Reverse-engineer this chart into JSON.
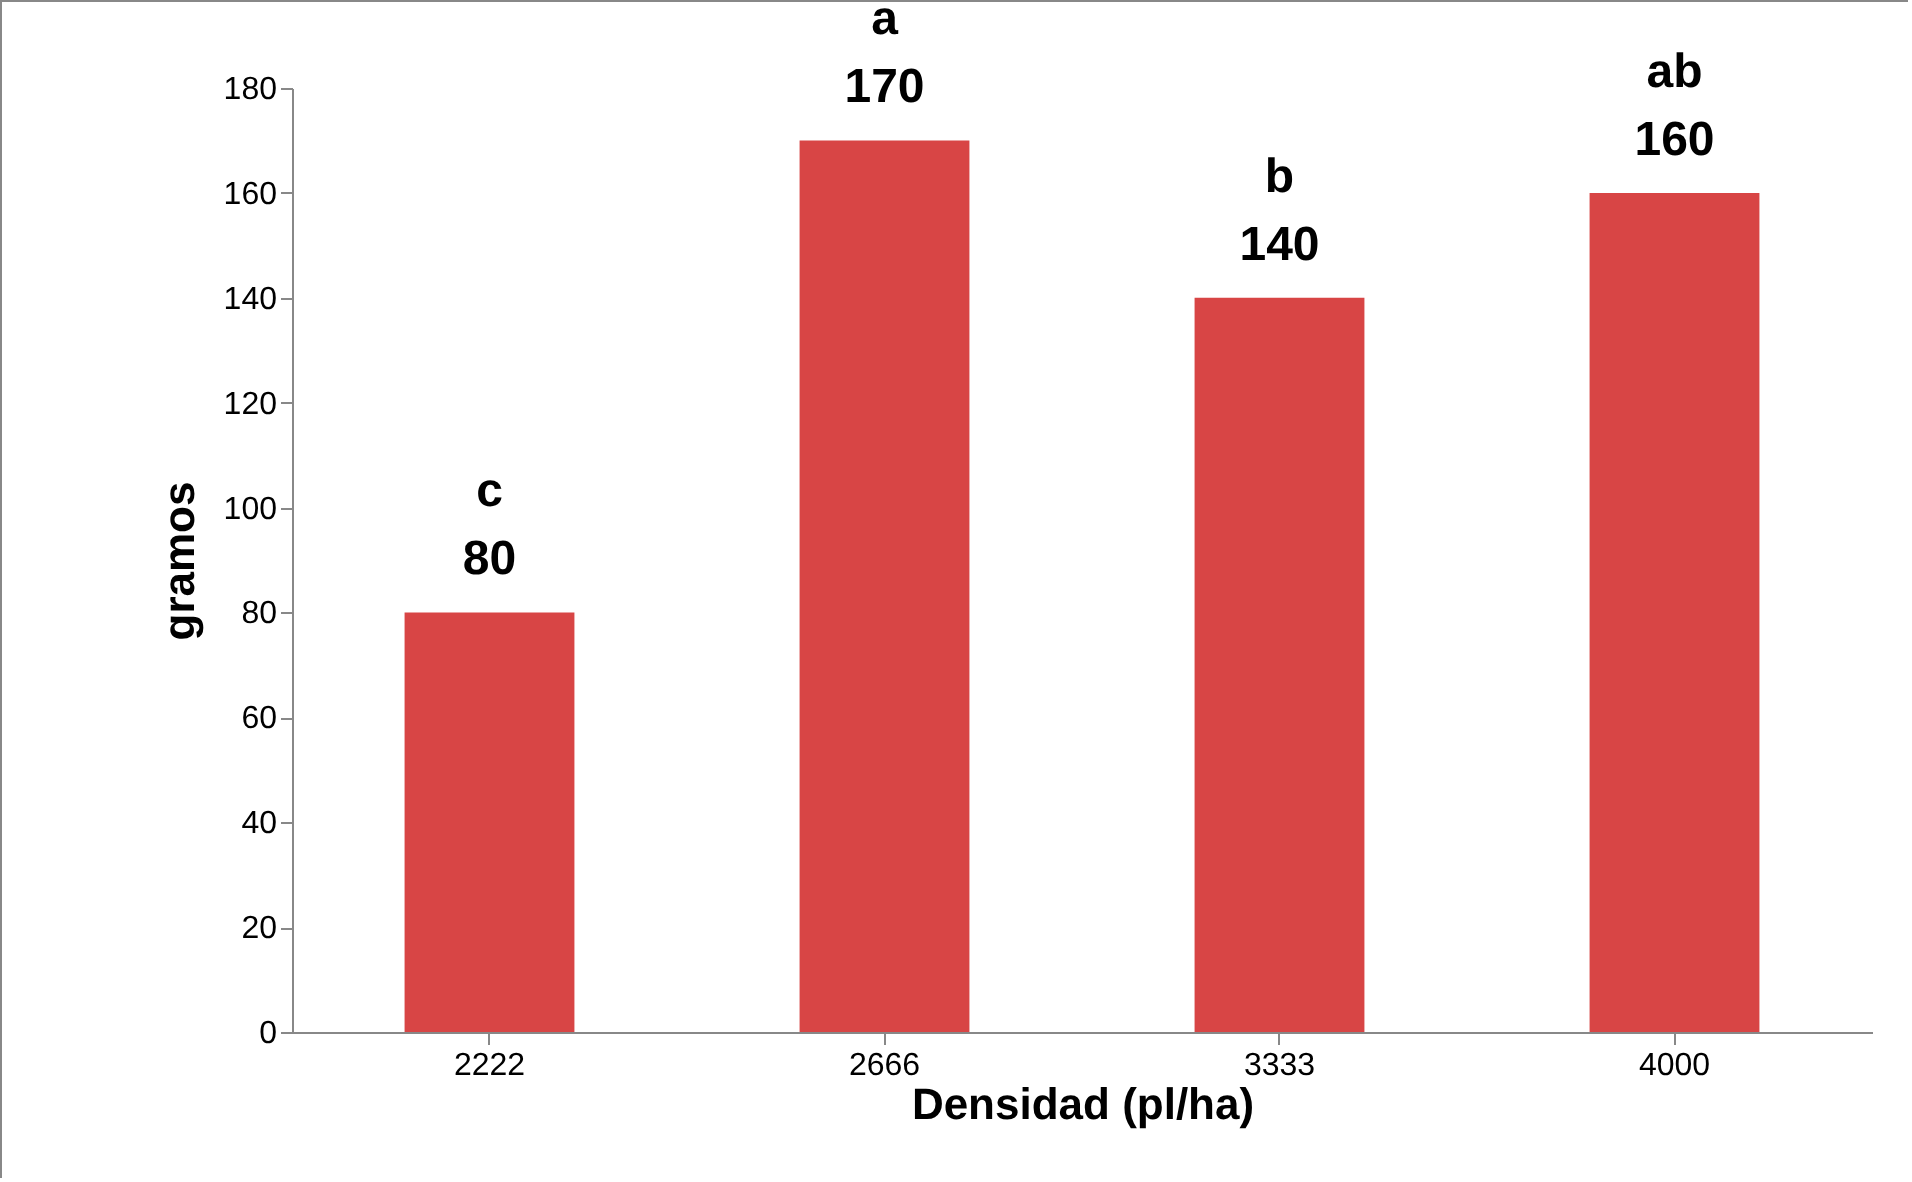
{
  "chart_data": {
    "type": "bar",
    "xlabel": "Densidad (pl/ha)",
    "ylabel": "gramos",
    "categories": [
      "2222",
      "2666",
      "3333",
      "4000"
    ],
    "values": [
      80,
      170,
      140,
      160
    ],
    "color": "#d84545",
    "ylim": [
      0,
      180
    ],
    "yticks": [
      0,
      20,
      40,
      60,
      80,
      100,
      120,
      140,
      160,
      180
    ],
    "grid": false,
    "data_labels": true,
    "annotations": [
      {
        "text": "c",
        "x": "2222",
        "y": 80
      },
      {
        "text": "a",
        "x": "2666",
        "y": 170
      },
      {
        "text": "b",
        "x": "3333",
        "y": 140
      },
      {
        "text": "ab",
        "x": "4000",
        "y": 160
      }
    ]
  }
}
